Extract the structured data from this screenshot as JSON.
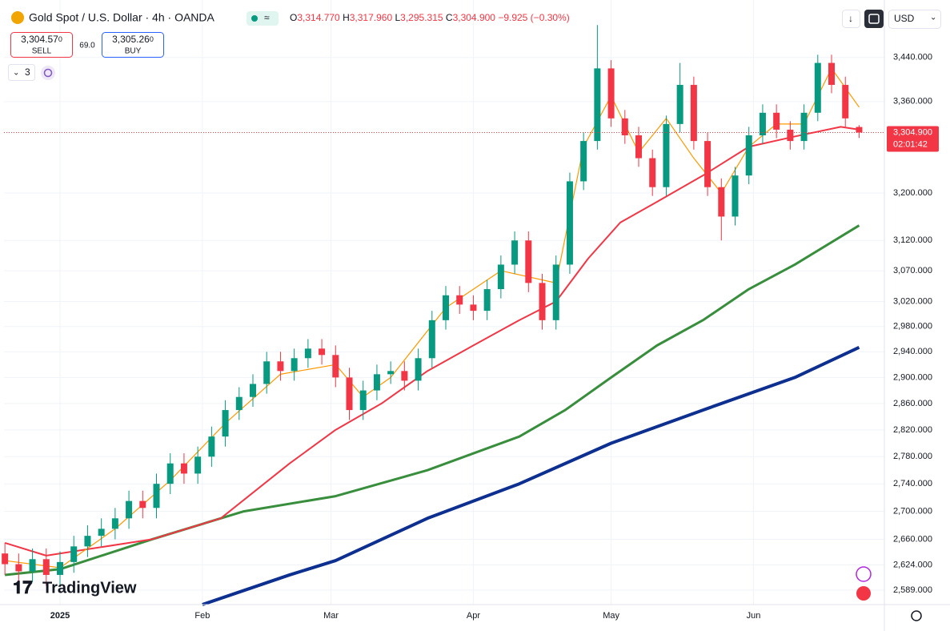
{
  "toolbar": {
    "symbol": "Gold Spot / U.S. Dollar · 4h · OANDA",
    "o_label": "O",
    "o": "3,314.770",
    "h_label": "H",
    "h": "3,317.960",
    "l_label": "L",
    "l": "3,295.315",
    "c_label": "C",
    "c": "3,304.900",
    "change": "−9.925 (−0.30%)",
    "sell_price": "3,304.57",
    "sell_digit": "0",
    "sell": "SELL",
    "spread": "69.0",
    "buy_price": "3,305.26",
    "buy_digit": "0",
    "buy": "BUY",
    "indicators": "3",
    "currency": "USD",
    "logo": "TradingView"
  },
  "chart_data": {
    "type": "candlestick",
    "log": true,
    "grid": true,
    "up_color": "#089981",
    "down_color": "#f23645",
    "xlim": [
      -12.2,
      179.5
    ],
    "xticks": [
      {
        "value": 0,
        "label": "2025"
      },
      {
        "value": 31,
        "label": "Feb"
      },
      {
        "value": 59,
        "label": "Mar"
      },
      {
        "value": 90,
        "label": "Apr"
      },
      {
        "value": 120,
        "label": "May"
      },
      {
        "value": 151,
        "label": "Jun"
      }
    ],
    "ylim": [
      2569,
      3532
    ],
    "yticks": [
      {
        "value": 3440,
        "label": "3,440.000"
      },
      {
        "value": 3360,
        "label": "3,360.000"
      },
      {
        "value": 3200,
        "label": "3,200.000"
      },
      {
        "value": 3120,
        "label": "3,120.000"
      },
      {
        "value": 3070,
        "label": "3,070.000"
      },
      {
        "value": 3020,
        "label": "3,020.000"
      },
      {
        "value": 2980,
        "label": "2,980.000"
      },
      {
        "value": 2940,
        "label": "2,940.000"
      },
      {
        "value": 2900,
        "label": "2,900.000"
      },
      {
        "value": 2860,
        "label": "2,860.000"
      },
      {
        "value": 2820,
        "label": "2,820.000"
      },
      {
        "value": 2780,
        "label": "2,780.000"
      },
      {
        "value": 2740,
        "label": "2,740.000"
      },
      {
        "value": 2700,
        "label": "2,700.000"
      },
      {
        "value": 2660,
        "label": "2,660.000"
      },
      {
        "value": 2624,
        "label": "2,624.000"
      },
      {
        "value": 2589,
        "label": "2,589.000"
      }
    ],
    "last_price": {
      "value": 3304.9,
      "label": "3,304.900"
    },
    "countdown": "02:01:42",
    "x": [
      -12,
      -9,
      -6,
      -3,
      0,
      3,
      6,
      9,
      12,
      15,
      18,
      21,
      24,
      27,
      30,
      33,
      36,
      39,
      42,
      45,
      48,
      51,
      54,
      57,
      60,
      63,
      66,
      69,
      72,
      75,
      78,
      81,
      84,
      87,
      90,
      93,
      96,
      99,
      102,
      105,
      108,
      111,
      114,
      117,
      120,
      123,
      126,
      129,
      132,
      135,
      138,
      141,
      144,
      147,
      150,
      153,
      156,
      159,
      162,
      165,
      168,
      171,
      174
    ],
    "open": [
      2640,
      2625,
      2615,
      2632,
      2610,
      2628,
      2650,
      2665,
      2675,
      2690,
      2715,
      2705,
      2740,
      2770,
      2755,
      2780,
      2810,
      2850,
      2870,
      2890,
      2925,
      2910,
      2930,
      2945,
      2935,
      2900,
      2850,
      2880,
      2905,
      2910,
      2895,
      2930,
      2990,
      3030,
      3015,
      3005,
      3040,
      3080,
      3120,
      3050,
      2990,
      3080,
      3220,
      3290,
      3420,
      3330,
      3300,
      3260,
      3210,
      3320,
      3390,
      3290,
      3210,
      3160,
      3230,
      3300,
      3340,
      3310,
      3290,
      3340,
      3430,
      3390,
      3314.77
    ],
    "high": [
      2655,
      2640,
      2647,
      2647,
      2643,
      2665,
      2680,
      2690,
      2705,
      2730,
      2730,
      2755,
      2785,
      2785,
      2795,
      2825,
      2865,
      2885,
      2905,
      2940,
      2940,
      2945,
      2960,
      2960,
      2950,
      2915,
      2895,
      2920,
      2925,
      2925,
      2945,
      3005,
      3045,
      3045,
      3030,
      3055,
      3095,
      3135,
      3135,
      3065,
      3095,
      3235,
      3305,
      3500,
      3435,
      3345,
      3315,
      3275,
      3335,
      3430,
      3405,
      3305,
      3225,
      3245,
      3315,
      3355,
      3355,
      3325,
      3355,
      3445,
      3445,
      3405,
      3317.96
    ],
    "low": [
      2610,
      2600,
      2600,
      2595,
      2595,
      2613,
      2635,
      2650,
      2660,
      2675,
      2690,
      2690,
      2725,
      2740,
      2740,
      2765,
      2795,
      2835,
      2855,
      2875,
      2895,
      2895,
      2915,
      2920,
      2885,
      2835,
      2835,
      2865,
      2890,
      2880,
      2880,
      2915,
      2975,
      3000,
      2990,
      2990,
      3025,
      3065,
      3035,
      2975,
      2975,
      3065,
      3205,
      3275,
      3315,
      3285,
      3245,
      3195,
      3195,
      3305,
      3275,
      3195,
      3120,
      3145,
      3215,
      3285,
      3295,
      3275,
      3275,
      3325,
      3375,
      3315,
      3295.315
    ],
    "close": [
      2625,
      2615,
      2632,
      2610,
      2628,
      2650,
      2665,
      2675,
      2690,
      2715,
      2705,
      2740,
      2770,
      2755,
      2780,
      2810,
      2850,
      2870,
      2890,
      2925,
      2910,
      2930,
      2945,
      2935,
      2900,
      2850,
      2880,
      2905,
      2910,
      2895,
      2930,
      2990,
      3030,
      3015,
      3005,
      3040,
      3080,
      3120,
      3050,
      2990,
      3080,
      3220,
      3290,
      3420,
      3330,
      3300,
      3260,
      3210,
      3320,
      3390,
      3290,
      3210,
      3160,
      3230,
      3300,
      3340,
      3310,
      3290,
      3340,
      3430,
      3390,
      3330,
      3304.9
    ],
    "lines": [
      {
        "color": "#0d2f8f",
        "width": 4,
        "x": [
          31,
          50,
          60,
          80,
          100,
          120,
          140,
          160,
          174
        ],
        "values": [
          2569,
          2610,
          2630,
          2690,
          2740,
          2800,
          2850,
          2900,
          2947
        ]
      },
      {
        "color": "#388e3c",
        "width": 3,
        "x": [
          -12,
          0,
          20,
          40,
          60,
          80,
          100,
          110,
          120,
          130,
          140,
          150,
          160,
          174
        ],
        "values": [
          2610,
          2618,
          2660,
          2700,
          2722,
          2760,
          2810,
          2850,
          2900,
          2950,
          2990,
          3040,
          3080,
          3145
        ]
      },
      {
        "color": "#f23645",
        "width": 2,
        "x": [
          -12,
          -3,
          5,
          20,
          35,
          50,
          60,
          70,
          80,
          90,
          100,
          108,
          115,
          122,
          130,
          140,
          150,
          160,
          170,
          174
        ],
        "values": [
          2655,
          2637,
          2645,
          2660,
          2690,
          2770,
          2820,
          2860,
          2910,
          2950,
          2990,
          3020,
          3090,
          3150,
          3185,
          3230,
          3280,
          3298,
          3315,
          3310
        ]
      },
      {
        "color": "#ff9800",
        "width": 1.2,
        "x": [
          -12,
          0,
          12,
          24,
          36,
          48,
          60,
          66,
          72,
          84,
          96,
          102,
          108,
          114,
          120,
          126,
          132,
          138,
          144,
          150,
          156,
          162,
          168,
          174
        ],
        "values": [
          2630,
          2620,
          2675,
          2745,
          2830,
          2905,
          2920,
          2870,
          2900,
          3010,
          3070,
          3060,
          3050,
          3280,
          3370,
          3270,
          3330,
          3260,
          3200,
          3280,
          3320,
          3320,
          3420,
          3350
        ]
      }
    ]
  }
}
